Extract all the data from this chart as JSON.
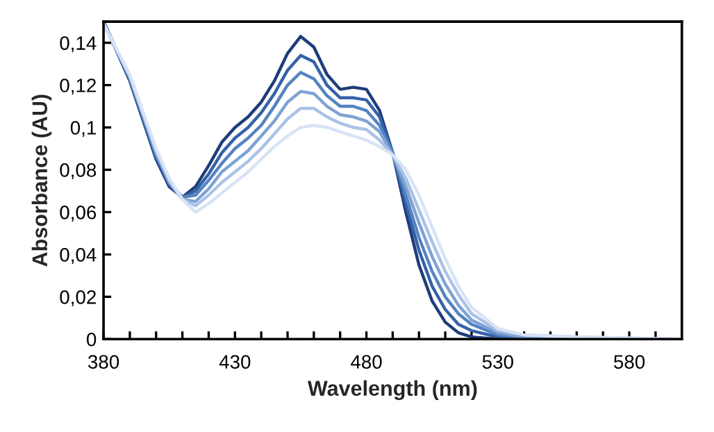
{
  "chart_data": {
    "type": "line",
    "xlabel": "Wavelength (nm)",
    "ylabel": "Absorbance (AU)",
    "x": [
      380,
      390,
      400,
      405,
      410,
      415,
      420,
      425,
      430,
      435,
      440,
      445,
      450,
      455,
      460,
      465,
      470,
      475,
      480,
      485,
      490,
      495,
      500,
      505,
      510,
      515,
      520,
      530,
      540,
      560,
      600
    ],
    "series": [
      {
        "color": "#1f3d7a",
        "values": [
          0.15,
          0.122,
          0.085,
          0.072,
          0.067,
          0.072,
          0.082,
          0.093,
          0.1,
          0.105,
          0.112,
          0.122,
          0.135,
          0.143,
          0.138,
          0.125,
          0.118,
          0.119,
          0.118,
          0.108,
          0.088,
          0.06,
          0.035,
          0.018,
          0.008,
          0.003,
          0.001,
          0,
          0,
          0,
          0
        ]
      },
      {
        "color": "#3462a8",
        "values": [
          0.15,
          0.123,
          0.086,
          0.073,
          0.067,
          0.07,
          0.078,
          0.088,
          0.095,
          0.1,
          0.107,
          0.116,
          0.127,
          0.134,
          0.131,
          0.12,
          0.114,
          0.114,
          0.113,
          0.105,
          0.088,
          0.064,
          0.042,
          0.025,
          0.014,
          0.007,
          0.004,
          0.001,
          0,
          0,
          0
        ]
      },
      {
        "color": "#5583c2",
        "values": [
          0.15,
          0.123,
          0.087,
          0.074,
          0.067,
          0.068,
          0.075,
          0.083,
          0.09,
          0.095,
          0.101,
          0.11,
          0.12,
          0.126,
          0.123,
          0.115,
          0.11,
          0.11,
          0.108,
          0.101,
          0.088,
          0.068,
          0.048,
          0.032,
          0.02,
          0.012,
          0.007,
          0.002,
          0.001,
          0,
          0
        ]
      },
      {
        "color": "#7fa2d4",
        "values": [
          0.149,
          0.124,
          0.088,
          0.074,
          0.066,
          0.065,
          0.071,
          0.079,
          0.084,
          0.089,
          0.096,
          0.103,
          0.112,
          0.117,
          0.116,
          0.11,
          0.106,
          0.105,
          0.103,
          0.098,
          0.087,
          0.072,
          0.055,
          0.039,
          0.026,
          0.016,
          0.009,
          0.003,
          0.001,
          0,
          0
        ]
      },
      {
        "color": "#aac2e6",
        "values": [
          0.149,
          0.124,
          0.089,
          0.075,
          0.066,
          0.063,
          0.068,
          0.074,
          0.079,
          0.084,
          0.09,
          0.097,
          0.104,
          0.109,
          0.109,
          0.105,
          0.102,
          0.1,
          0.099,
          0.094,
          0.087,
          0.076,
          0.061,
          0.046,
          0.032,
          0.021,
          0.012,
          0.004,
          0.002,
          0.001,
          0
        ]
      },
      {
        "color": "#d8e3f4",
        "values": [
          0.149,
          0.125,
          0.09,
          0.076,
          0.066,
          0.06,
          0.064,
          0.069,
          0.074,
          0.079,
          0.085,
          0.091,
          0.096,
          0.1,
          0.101,
          0.1,
          0.098,
          0.096,
          0.094,
          0.091,
          0.087,
          0.08,
          0.068,
          0.053,
          0.038,
          0.025,
          0.015,
          0.005,
          0.002,
          0.001,
          0
        ]
      }
    ],
    "xlim": [
      380,
      600
    ],
    "xticks": [
      380,
      {
        "value": 390,
        "label": null
      },
      {
        "value": 400,
        "label": null
      },
      {
        "value": 410,
        "label": null
      },
      {
        "value": 420,
        "label": null
      },
      430,
      {
        "value": 440,
        "label": null
      },
      {
        "value": 450,
        "label": null
      },
      {
        "value": 460,
        "label": null
      },
      {
        "value": 470,
        "label": null
      },
      480,
      {
        "value": 490,
        "label": null
      },
      {
        "value": 500,
        "label": null
      },
      {
        "value": 510,
        "label": null
      },
      {
        "value": 520,
        "label": null
      },
      530,
      {
        "value": 540,
        "label": null
      },
      {
        "value": 550,
        "label": null
      },
      {
        "value": 560,
        "label": null
      },
      {
        "value": 570,
        "label": null
      },
      580,
      {
        "value": 590,
        "label": null
      }
    ],
    "ylim": [
      0,
      0.15
    ],
    "yticks": [
      0,
      {
        "value": 0.02,
        "label": "0,02"
      },
      {
        "value": 0.04,
        "label": "0,04"
      },
      {
        "value": 0.06,
        "label": "0,06"
      },
      {
        "value": 0.08,
        "label": "0,08"
      },
      {
        "value": 0.1,
        "label": "0,1"
      },
      {
        "value": 0.12,
        "label": "0,12"
      },
      {
        "value": 0.14,
        "label": "0,14"
      }
    ],
    "grid": false,
    "legend": false,
    "marker": "none",
    "line_style": "solid"
  }
}
